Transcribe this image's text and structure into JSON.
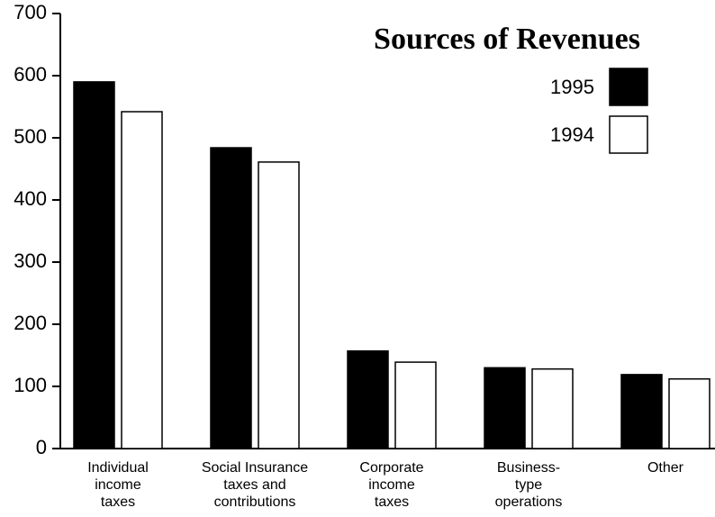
{
  "chart_data": {
    "type": "bar",
    "title": "Sources of Revenues",
    "categories": [
      "Individual\nincome\ntaxes",
      "Social Insurance\ntaxes and\ncontributions",
      "Corporate\nincome\ntaxes",
      "Business-\ntype\noperations",
      "Other"
    ],
    "series": [
      {
        "name": "1995",
        "color": "#000000",
        "values": [
          590,
          484,
          157,
          130,
          119
        ]
      },
      {
        "name": "1994",
        "color": "#ffffff",
        "values": [
          542,
          461,
          139,
          128,
          112
        ]
      }
    ],
    "ylim": [
      0,
      700
    ],
    "yticks": [
      0,
      100,
      200,
      300,
      400,
      500,
      600,
      700
    ],
    "grid": false
  }
}
